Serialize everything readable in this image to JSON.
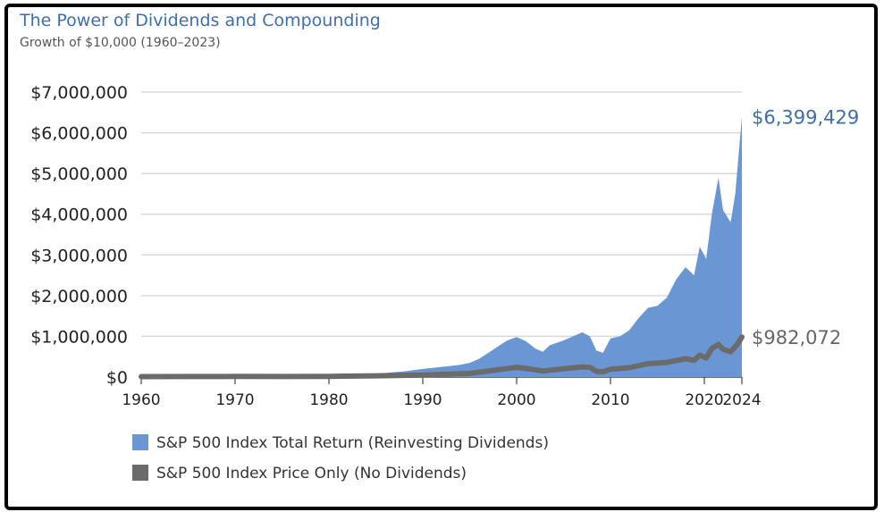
{
  "chart_data": {
    "type": "area",
    "title": "The Power of Dividends and Compounding",
    "subtitle": "Growth of $10,000 (1960–2023)",
    "xlim": [
      1960,
      2024
    ],
    "ylim": [
      0,
      7000000
    ],
    "y_ticks": [
      "$0",
      "$1,000,000",
      "$2,000,000",
      "$3,000,000",
      "$4,000,000",
      "$5,000,000",
      "$6,000,000",
      "$7,000,000"
    ],
    "y_tick_values": [
      0,
      1000000,
      2000000,
      3000000,
      4000000,
      5000000,
      6000000,
      7000000
    ],
    "x_ticks": [
      "1960",
      "1970",
      "1980",
      "1990",
      "2000",
      "2010",
      "2020",
      "2024"
    ],
    "x_tick_values": [
      1960,
      1970,
      1980,
      1990,
      2000,
      2010,
      2020,
      2024
    ],
    "grid": "horizontal",
    "legend_position": "bottom-left",
    "series": [
      {
        "name": "S&P 500 Index Total Return (Reinvesting Dividends)",
        "color": "#6a97d3",
        "style": "area",
        "end_label": "$6,399,429",
        "x": [
          1960,
          1965,
          1970,
          1975,
          1980,
          1983,
          1985,
          1987,
          1988,
          1990,
          1992,
          1994,
          1995,
          1996,
          1997,
          1998,
          1999,
          2000,
          2001,
          2002,
          2002.8,
          2003.5,
          2005,
          2007,
          2007.8,
          2008.5,
          2009.2,
          2010,
          2011,
          2012,
          2013,
          2014,
          2015,
          2016,
          2017,
          2018,
          2018.9,
          2019.5,
          2020.2,
          2020.8,
          2021.5,
          2022,
          2022.8,
          2023.3,
          2023.7,
          2024
        ],
        "values": [
          10000,
          18000,
          20000,
          22000,
          35000,
          60000,
          80000,
          120000,
          140000,
          200000,
          250000,
          300000,
          350000,
          450000,
          600000,
          750000,
          900000,
          980000,
          880000,
          700000,
          620000,
          780000,
          900000,
          1100000,
          1000000,
          650000,
          600000,
          950000,
          1000000,
          1150000,
          1450000,
          1700000,
          1750000,
          1950000,
          2400000,
          2700000,
          2500000,
          3200000,
          2900000,
          4000000,
          4900000,
          4100000,
          3800000,
          4500000,
          5600000,
          6399429
        ]
      },
      {
        "name": "S&P 500 Index Price Only (No Dividends)",
        "color": "#6b6b6b",
        "style": "line",
        "end_label": "$982,072",
        "x": [
          1960,
          1965,
          1970,
          1975,
          1980,
          1985,
          1990,
          1995,
          1998,
          2000,
          2001,
          2002.8,
          2004,
          2007,
          2007.8,
          2008.5,
          2009.2,
          2010,
          2012,
          2014,
          2016,
          2018,
          2018.9,
          2019.5,
          2020.2,
          2020.8,
          2021.5,
          2022,
          2022.8,
          2023.5,
          2024
        ],
        "values": [
          10000,
          14000,
          15000,
          14000,
          18000,
          30000,
          50000,
          90000,
          180000,
          240000,
          210000,
          150000,
          180000,
          250000,
          240000,
          140000,
          130000,
          190000,
          230000,
          330000,
          360000,
          450000,
          410000,
          540000,
          470000,
          700000,
          800000,
          680000,
          620000,
          800000,
          982072
        ]
      }
    ]
  }
}
